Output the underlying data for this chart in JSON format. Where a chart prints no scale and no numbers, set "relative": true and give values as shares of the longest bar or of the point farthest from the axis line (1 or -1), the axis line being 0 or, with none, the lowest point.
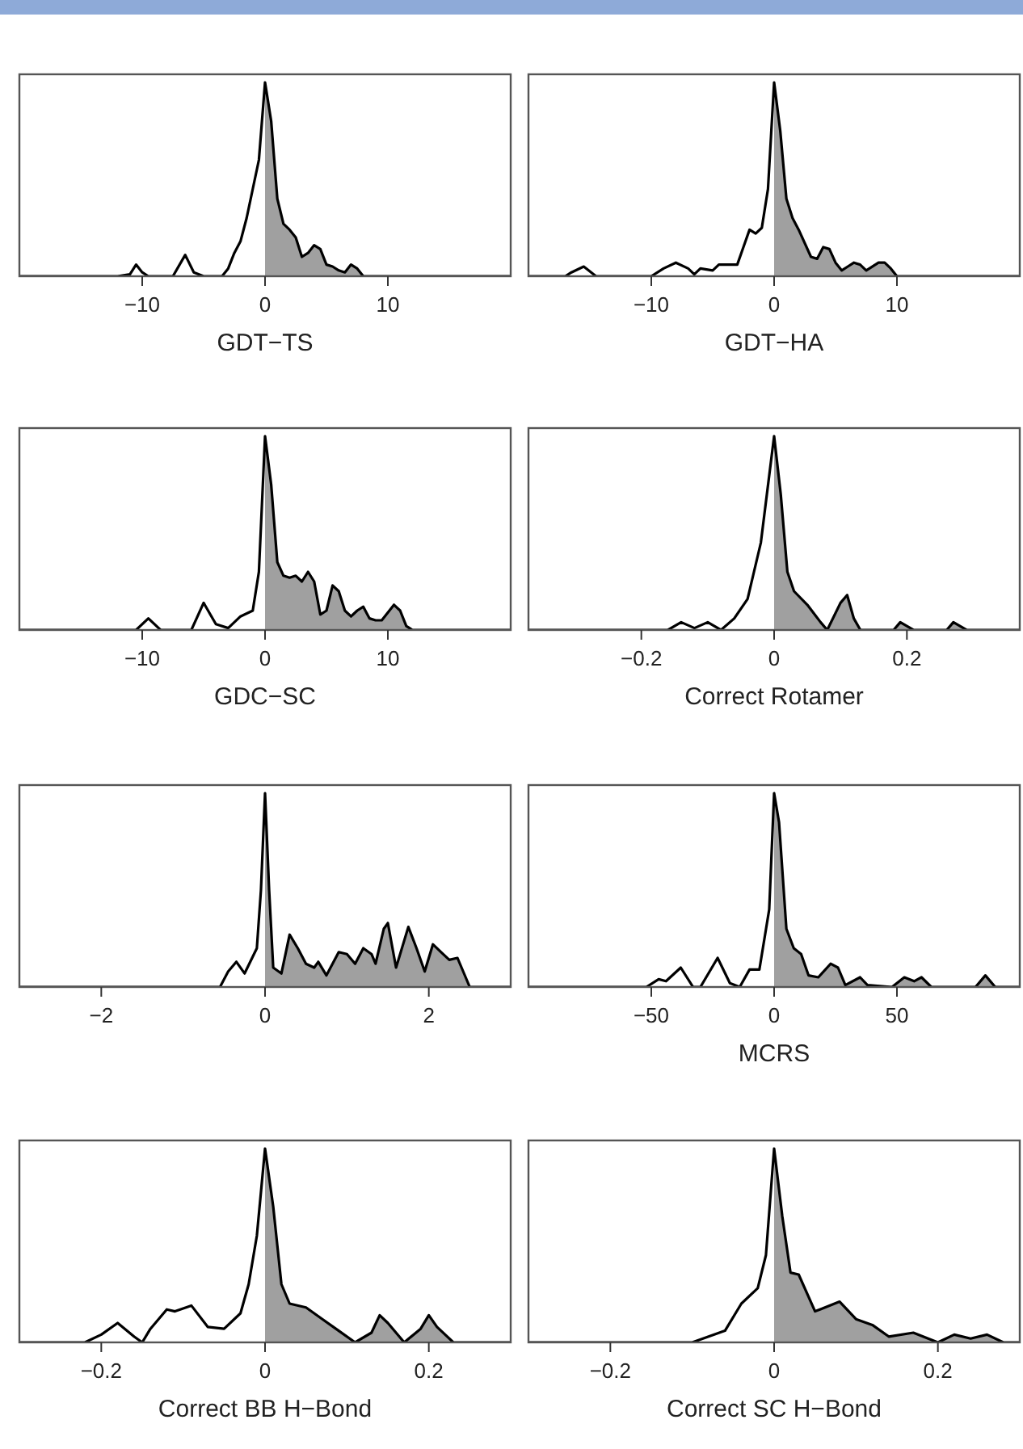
{
  "chart_data": [
    {
      "type": "line",
      "relative": true,
      "xlabel": "GDT−TS",
      "xlim": [
        -20,
        20
      ],
      "xticks": [
        {
          "value": -10,
          "label": "−10"
        },
        0,
        10
      ],
      "series": [
        {
          "type": "area",
          "color": "#a0a0a0",
          "x": [
            0,
            0.5,
            1,
            1.5,
            2,
            2.5,
            3,
            3.5,
            4,
            4.5,
            5,
            5.5,
            6,
            6.5,
            7,
            7.5,
            8
          ],
          "values": [
            1,
            0.8,
            0.4,
            0.27,
            0.24,
            0.2,
            0.1,
            0.12,
            0.16,
            0.14,
            0.06,
            0.05,
            0.03,
            0.02,
            0.06,
            0.04,
            0
          ]
        },
        {
          "type": "line",
          "color": "#000000",
          "x": [
            -20,
            -12,
            -11,
            -10.5,
            -10,
            -9.5,
            -7.5,
            -6.5,
            -5.8,
            -5,
            -3.5,
            -3,
            -2.5,
            -2,
            -1.5,
            -1,
            -0.5,
            0,
            0.5,
            1,
            1.5,
            2,
            2.5,
            3,
            3.5,
            4,
            4.5,
            5,
            5.5,
            6,
            6.5,
            7,
            7.5,
            8,
            20
          ],
          "values": [
            0,
            0,
            0.01,
            0.06,
            0.02,
            0,
            0,
            0.11,
            0.02,
            0,
            0,
            0.04,
            0.12,
            0.18,
            0.3,
            0.45,
            0.6,
            1,
            0.8,
            0.4,
            0.27,
            0.24,
            0.2,
            0.1,
            0.12,
            0.16,
            0.14,
            0.06,
            0.05,
            0.03,
            0.02,
            0.06,
            0.04,
            0,
            0
          ]
        }
      ]
    },
    {
      "type": "line",
      "relative": true,
      "xlabel": "GDT−HA",
      "xlim": [
        -20,
        20
      ],
      "xticks": [
        {
          "value": -10,
          "label": "−10"
        },
        0,
        10
      ],
      "series": [
        {
          "type": "area",
          "color": "#a0a0a0",
          "x": [
            0,
            0.5,
            1,
            1.5,
            2,
            3,
            3.5,
            4,
            4.5,
            5,
            5.5,
            6,
            6.5,
            7,
            7.5,
            8.5,
            9,
            9.5,
            10
          ],
          "values": [
            1,
            0.75,
            0.4,
            0.3,
            0.24,
            0.1,
            0.09,
            0.15,
            0.14,
            0.07,
            0.03,
            0.05,
            0.07,
            0.06,
            0.03,
            0.07,
            0.07,
            0.04,
            0
          ]
        },
        {
          "type": "line",
          "color": "#000000",
          "x": [
            -20,
            -17,
            -16.5,
            -15.5,
            -14.5,
            -10,
            -9,
            -8,
            -7,
            -6.5,
            -6,
            -5,
            -4.5,
            -3,
            -2.5,
            -2,
            -1.5,
            -1,
            -0.5,
            0,
            0.5,
            1,
            1.5,
            2,
            3,
            3.5,
            4,
            4.5,
            5,
            5.5,
            6,
            6.5,
            7,
            7.5,
            8.5,
            9,
            9.5,
            10,
            20
          ],
          "values": [
            0,
            0,
            0.02,
            0.05,
            0,
            0,
            0.04,
            0.07,
            0.04,
            0.01,
            0.04,
            0.03,
            0.06,
            0.06,
            0.15,
            0.24,
            0.22,
            0.25,
            0.45,
            1,
            0.75,
            0.4,
            0.3,
            0.24,
            0.1,
            0.09,
            0.15,
            0.14,
            0.07,
            0.03,
            0.05,
            0.07,
            0.06,
            0.03,
            0.07,
            0.07,
            0.04,
            0,
            0
          ]
        }
      ]
    },
    {
      "type": "line",
      "relative": true,
      "xlabel": "GDC−SC",
      "xlim": [
        -20,
        20
      ],
      "xticks": [
        {
          "value": -10,
          "label": "−10"
        },
        0,
        10
      ],
      "series": [
        {
          "type": "area",
          "color": "#a0a0a0",
          "x": [
            0,
            0.5,
            1,
            1.5,
            2,
            2.5,
            3,
            3.5,
            4,
            4.5,
            5,
            5.5,
            6,
            6.5,
            7,
            7.5,
            8,
            8.5,
            9,
            9.5,
            10.5,
            11,
            11.5,
            12
          ],
          "values": [
            1,
            0.75,
            0.35,
            0.28,
            0.27,
            0.28,
            0.25,
            0.3,
            0.25,
            0.08,
            0.1,
            0.23,
            0.2,
            0.1,
            0.07,
            0.1,
            0.12,
            0.06,
            0.05,
            0.05,
            0.13,
            0.1,
            0.02,
            0
          ]
        },
        {
          "type": "line",
          "color": "#000000",
          "x": [
            -20,
            -10.5,
            -9.5,
            -8.5,
            -6,
            -5,
            -4,
            -3,
            -2,
            -1,
            -0.5,
            0,
            0.5,
            1,
            1.5,
            2,
            2.5,
            3,
            3.5,
            4,
            4.5,
            5,
            5.5,
            6,
            6.5,
            7,
            7.5,
            8,
            8.5,
            9,
            9.5,
            10.5,
            11,
            11.5,
            12,
            20
          ],
          "values": [
            0,
            0,
            0.06,
            0,
            0,
            0.14,
            0.03,
            0.01,
            0.07,
            0.1,
            0.3,
            1,
            0.75,
            0.35,
            0.28,
            0.27,
            0.28,
            0.25,
            0.3,
            0.25,
            0.08,
            0.1,
            0.23,
            0.2,
            0.1,
            0.07,
            0.1,
            0.12,
            0.06,
            0.05,
            0.05,
            0.13,
            0.1,
            0.02,
            0,
            0
          ]
        }
      ]
    },
    {
      "type": "line",
      "relative": true,
      "xlabel": "Correct Rotamer",
      "xlim": [
        -0.37,
        0.37
      ],
      "xticks": [
        {
          "value": -0.2,
          "label": "−0.2"
        },
        0,
        0.2
      ],
      "series": [
        {
          "type": "area",
          "color": "#a0a0a0",
          "x": [
            0,
            0.01,
            0.02,
            0.03,
            0.05,
            0.07,
            0.08,
            0.1,
            0.11,
            0.12,
            0.13,
            0.18,
            0.19,
            0.2,
            0.21,
            0.26,
            0.27,
            0.28,
            0.29
          ],
          "values": [
            1,
            0.7,
            0.3,
            0.2,
            0.13,
            0.04,
            0,
            0.14,
            0.18,
            0.06,
            0,
            0,
            0.04,
            0.02,
            0,
            0,
            0.04,
            0.02,
            0
          ]
        },
        {
          "type": "line",
          "color": "#000000",
          "x": [
            -0.37,
            -0.16,
            -0.14,
            -0.12,
            -0.1,
            -0.08,
            -0.06,
            -0.04,
            -0.02,
            0,
            0.01,
            0.02,
            0.03,
            0.05,
            0.07,
            0.08,
            0.1,
            0.11,
            0.12,
            0.13,
            0.18,
            0.19,
            0.2,
            0.21,
            0.26,
            0.27,
            0.28,
            0.29,
            0.37
          ],
          "values": [
            0,
            0,
            0.04,
            0.01,
            0.04,
            0,
            0.06,
            0.16,
            0.45,
            1,
            0.7,
            0.3,
            0.2,
            0.13,
            0.04,
            0,
            0.14,
            0.18,
            0.06,
            0,
            0,
            0.04,
            0.02,
            0,
            0,
            0.04,
            0.02,
            0,
            0
          ]
        }
      ]
    },
    {
      "type": "line",
      "relative": true,
      "xlim": [
        -3,
        3
      ],
      "xticks": [
        {
          "value": -2,
          "label": "−2"
        },
        0,
        2
      ],
      "series": [
        {
          "type": "area",
          "color": "#a0a0a0",
          "x": [
            0,
            0.05,
            0.1,
            0.2,
            0.3,
            0.4,
            0.5,
            0.6,
            0.65,
            0.75,
            0.9,
            1,
            1.1,
            1.2,
            1.3,
            1.35,
            1.45,
            1.5,
            1.6,
            1.75,
            1.85,
            1.95,
            2.05,
            2.15,
            2.25,
            2.35,
            2.45,
            2.5
          ],
          "values": [
            1,
            0.5,
            0.1,
            0.07,
            0.27,
            0.2,
            0.12,
            0.1,
            0.13,
            0.06,
            0.18,
            0.17,
            0.12,
            0.2,
            0.17,
            0.12,
            0.3,
            0.33,
            0.1,
            0.31,
            0.2,
            0.08,
            0.22,
            0.18,
            0.14,
            0.15,
            0.05,
            0
          ]
        },
        {
          "type": "line",
          "color": "#000000",
          "x": [
            -3,
            -0.55,
            -0.45,
            -0.35,
            -0.25,
            -0.1,
            -0.05,
            0,
            0.05,
            0.1,
            0.2,
            0.3,
            0.4,
            0.5,
            0.6,
            0.65,
            0.75,
            0.9,
            1,
            1.1,
            1.2,
            1.3,
            1.35,
            1.45,
            1.5,
            1.6,
            1.75,
            1.85,
            1.95,
            2.05,
            2.15,
            2.25,
            2.35,
            2.45,
            2.5,
            3
          ],
          "values": [
            0,
            0,
            0.08,
            0.13,
            0.07,
            0.2,
            0.5,
            1,
            0.5,
            0.1,
            0.07,
            0.27,
            0.2,
            0.12,
            0.1,
            0.13,
            0.06,
            0.18,
            0.17,
            0.12,
            0.2,
            0.17,
            0.12,
            0.3,
            0.33,
            0.1,
            0.31,
            0.2,
            0.08,
            0.22,
            0.18,
            0.14,
            0.15,
            0.05,
            0,
            0
          ]
        }
      ]
    },
    {
      "type": "line",
      "relative": true,
      "xlabel": "MCRS",
      "xlim": [
        -100,
        100
      ],
      "xticks": [
        {
          "value": -50,
          "label": "−50"
        },
        0,
        50
      ],
      "series": [
        {
          "type": "area",
          "color": "#a0a0a0",
          "x": [
            0,
            2,
            5,
            8,
            11,
            14,
            18,
            23,
            26,
            29,
            35,
            38,
            48,
            53,
            57,
            60,
            64,
            82,
            86,
            90
          ],
          "values": [
            1,
            0.85,
            0.3,
            0.2,
            0.17,
            0.06,
            0.05,
            0.12,
            0.1,
            0.01,
            0.05,
            0.01,
            0,
            0.05,
            0.03,
            0.05,
            0,
            0,
            0.06,
            0
          ]
        },
        {
          "type": "line",
          "color": "#000000",
          "x": [
            -100,
            -52,
            -47,
            -44,
            -38,
            -33,
            -30,
            -23,
            -18,
            -14,
            -10,
            -6,
            -2,
            0,
            2,
            5,
            8,
            11,
            14,
            18,
            23,
            26,
            29,
            35,
            38,
            48,
            53,
            57,
            60,
            64,
            82,
            86,
            90,
            100
          ],
          "values": [
            0,
            0,
            0.04,
            0.03,
            0.1,
            0,
            0,
            0.15,
            0.02,
            0,
            0.09,
            0.09,
            0.4,
            1,
            0.85,
            0.3,
            0.2,
            0.17,
            0.06,
            0.05,
            0.12,
            0.1,
            0.01,
            0.05,
            0.01,
            0,
            0.05,
            0.03,
            0.05,
            0,
            0,
            0.06,
            0,
            0
          ]
        }
      ]
    },
    {
      "type": "line",
      "relative": true,
      "xlabel": "Correct BB H−Bond",
      "xlim": [
        -0.3,
        0.3
      ],
      "xticks": [
        {
          "value": -0.2,
          "label": "−0.2"
        },
        0,
        0.2
      ],
      "series": [
        {
          "type": "area",
          "color": "#a0a0a0",
          "x": [
            0,
            0.01,
            0.02,
            0.03,
            0.05,
            0.07,
            0.09,
            0.11,
            0.13,
            0.14,
            0.15,
            0.17,
            0.19,
            0.2,
            0.21,
            0.23
          ],
          "values": [
            1,
            0.7,
            0.3,
            0.2,
            0.18,
            0.12,
            0.06,
            0,
            0.05,
            0.14,
            0.1,
            0,
            0.07,
            0.14,
            0.08,
            0
          ]
        },
        {
          "type": "line",
          "color": "#000000",
          "x": [
            -0.3,
            -0.22,
            -0.2,
            -0.18,
            -0.16,
            -0.15,
            -0.14,
            -0.12,
            -0.11,
            -0.09,
            -0.07,
            -0.05,
            -0.03,
            -0.02,
            -0.01,
            0,
            0.01,
            0.02,
            0.03,
            0.05,
            0.07,
            0.09,
            0.11,
            0.13,
            0.14,
            0.15,
            0.17,
            0.19,
            0.2,
            0.21,
            0.23,
            0.3
          ],
          "values": [
            0,
            0,
            0.04,
            0.1,
            0.03,
            0,
            0.07,
            0.17,
            0.16,
            0.19,
            0.08,
            0.07,
            0.15,
            0.3,
            0.55,
            1,
            0.7,
            0.3,
            0.2,
            0.18,
            0.12,
            0.06,
            0,
            0.05,
            0.14,
            0.1,
            0,
            0.07,
            0.14,
            0.08,
            0,
            0
          ]
        }
      ]
    },
    {
      "type": "line",
      "relative": true,
      "xlabel": "Correct SC H−Bond",
      "xlim": [
        -0.3,
        0.3
      ],
      "xticks": [
        {
          "value": -0.2,
          "label": "−0.2"
        },
        0,
        0.2
      ],
      "series": [
        {
          "type": "area",
          "color": "#a0a0a0",
          "x": [
            0,
            0.01,
            0.02,
            0.03,
            0.05,
            0.08,
            0.1,
            0.12,
            0.14,
            0.17,
            0.2,
            0.22,
            0.24,
            0.26,
            0.28
          ],
          "values": [
            1,
            0.65,
            0.36,
            0.35,
            0.16,
            0.21,
            0.12,
            0.09,
            0.03,
            0.05,
            0,
            0.04,
            0.02,
            0.04,
            0
          ]
        },
        {
          "type": "line",
          "color": "#000000",
          "x": [
            -0.3,
            -0.1,
            -0.08,
            -0.06,
            -0.04,
            -0.02,
            -0.01,
            0,
            0.01,
            0.02,
            0.03,
            0.05,
            0.08,
            0.1,
            0.12,
            0.14,
            0.17,
            0.2,
            0.22,
            0.24,
            0.26,
            0.28,
            0.3
          ],
          "values": [
            0,
            0,
            0.03,
            0.06,
            0.2,
            0.28,
            0.45,
            1,
            0.65,
            0.36,
            0.35,
            0.16,
            0.21,
            0.12,
            0.09,
            0.03,
            0.05,
            0,
            0.04,
            0.02,
            0.04,
            0,
            0
          ]
        }
      ]
    }
  ]
}
